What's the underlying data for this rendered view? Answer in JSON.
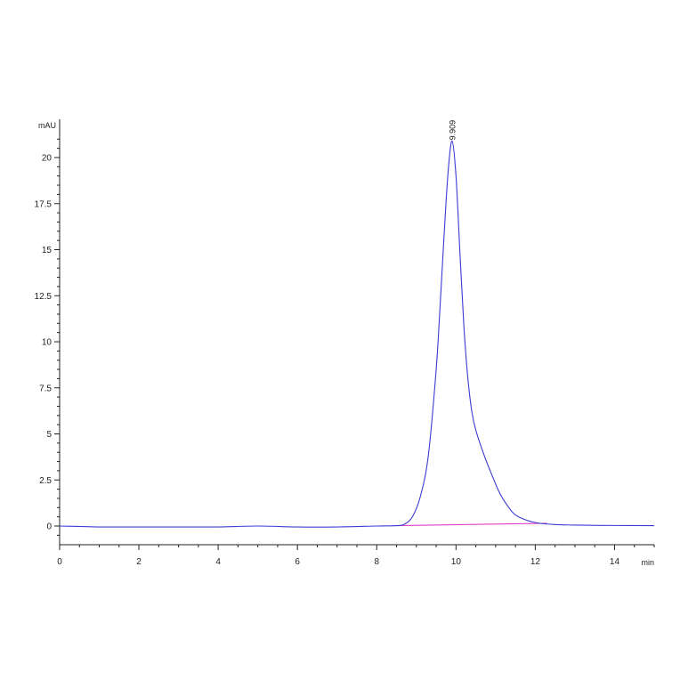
{
  "chart_data": {
    "type": "line",
    "title": "",
    "xlabel": "min",
    "ylabel": "mAU",
    "xlim": [
      0,
      15
    ],
    "ylim": [
      -1,
      22
    ],
    "x_ticks": [
      0,
      2,
      4,
      6,
      8,
      10,
      12,
      14
    ],
    "x_tick_labels": [
      "0",
      "2",
      "4",
      "6",
      "8",
      "10",
      "12",
      "14"
    ],
    "y_ticks": [
      0,
      2.5,
      5,
      7.5,
      10,
      12.5,
      15,
      17.5,
      20
    ],
    "y_tick_labels": [
      "0",
      "2.5",
      "5",
      "7.5",
      "10",
      "12.5",
      "15",
      "17.5",
      "20"
    ],
    "grid": false,
    "series": [
      {
        "color": "#3b3bd6",
        "x": [
          0,
          1,
          2,
          3,
          4,
          5,
          6,
          7,
          8,
          8.5,
          8.7,
          8.9,
          9.1,
          9.3,
          9.5,
          9.6,
          9.7,
          9.8,
          9.9,
          10.0,
          10.1,
          10.2,
          10.3,
          10.4,
          10.5,
          10.7,
          10.9,
          11.1,
          11.3,
          11.5,
          11.8,
          12.1,
          12.5,
          13,
          14,
          15
        ],
        "y": [
          0.0,
          -0.05,
          -0.05,
          -0.05,
          -0.05,
          0.0,
          -0.05,
          -0.05,
          0.0,
          0.02,
          0.1,
          0.5,
          1.6,
          3.8,
          8.5,
          12.0,
          15.8,
          19.2,
          20.9,
          19.0,
          14.8,
          10.8,
          8.0,
          6.2,
          5.2,
          3.9,
          2.8,
          1.8,
          1.1,
          0.6,
          0.3,
          0.15,
          0.08,
          0.05,
          0.03,
          0.02
        ]
      },
      {
        "color": "#e040c8",
        "x": [
          8.5,
          12.3
        ],
        "y": [
          0.02,
          0.15
        ]
      }
    ],
    "annotations": [
      {
        "text": "9.909",
        "x": 9.909,
        "y": 20.9
      }
    ]
  }
}
